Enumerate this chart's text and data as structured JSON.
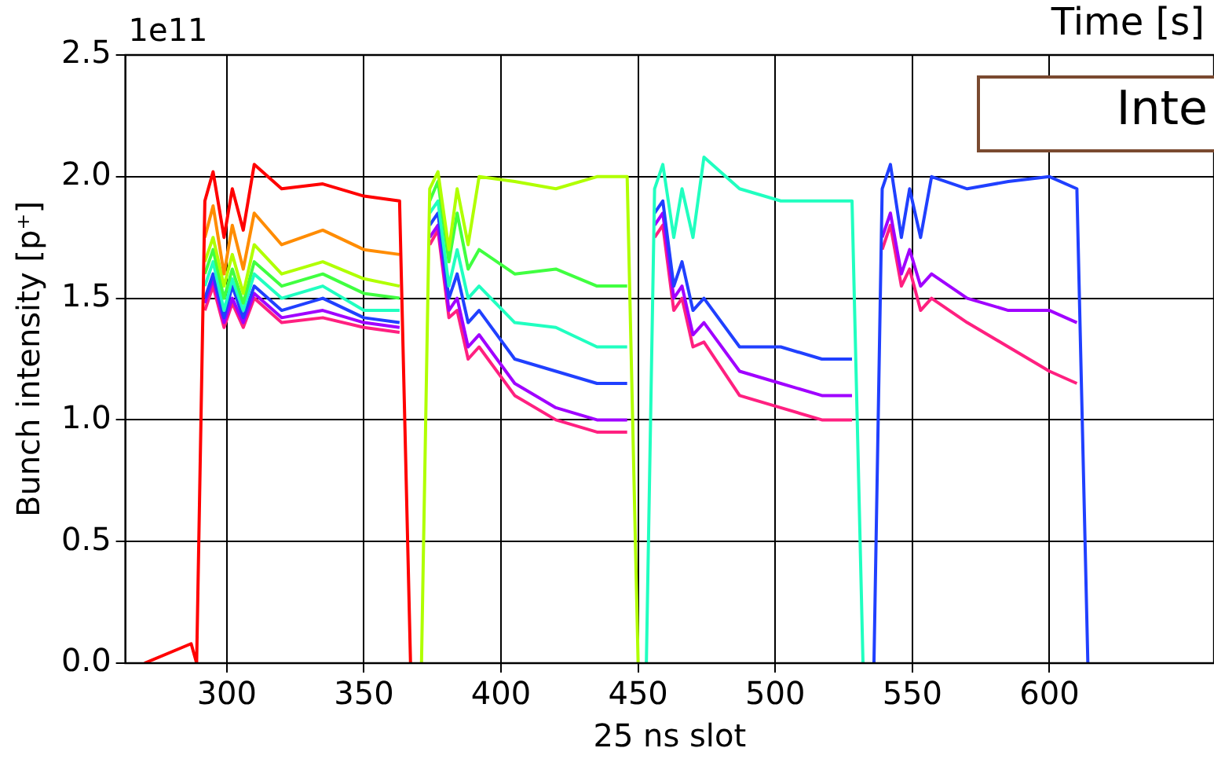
{
  "chart_data": {
    "type": "line",
    "xlabel": "25 ns slot",
    "ylabel": "Bunch intensity [p⁺]",
    "annotations": [
      "1e11",
      "Time [s]",
      "Inte"
    ],
    "x": [
      270,
      287,
      289,
      292,
      295,
      299,
      302,
      306,
      310,
      320,
      335,
      350,
      363,
      367,
      371,
      374,
      377,
      381,
      384,
      388,
      392,
      405,
      420,
      435,
      446,
      450,
      453,
      456,
      459,
      463,
      466,
      470,
      474,
      487,
      502,
      517,
      528,
      532,
      536,
      539,
      542,
      546,
      549,
      553,
      557,
      570,
      585,
      600,
      610,
      614
    ],
    "series": [
      {
        "color": "#ff0000",
        "values": [
          0,
          0.08,
          0,
          1.9,
          2.02,
          1.75,
          1.95,
          1.78,
          2.05,
          1.95,
          1.97,
          1.92,
          1.9,
          0,
          null,
          null,
          null,
          null,
          null,
          null,
          null,
          null,
          null,
          null,
          null,
          null,
          null,
          null,
          null,
          null,
          null,
          null,
          null,
          null,
          null,
          null,
          null,
          null,
          null,
          null,
          null,
          null,
          null,
          null,
          null,
          null,
          null,
          null,
          null,
          null
        ]
      },
      {
        "color": "#ff8c00",
        "values": [
          null,
          null,
          null,
          1.75,
          1.88,
          1.6,
          1.8,
          1.62,
          1.85,
          1.72,
          1.78,
          1.7,
          1.68,
          null,
          null,
          null,
          null,
          null,
          null,
          null,
          null,
          null,
          null,
          null,
          null,
          null,
          null,
          null,
          null,
          null,
          null,
          null,
          null,
          null,
          null,
          null,
          null,
          null,
          null,
          null,
          null,
          null,
          null,
          null,
          null,
          null,
          null,
          null,
          null,
          null
        ]
      },
      {
        "color": "#b0ff00",
        "values": [
          null,
          null,
          null,
          1.65,
          1.75,
          1.55,
          1.68,
          1.52,
          1.72,
          1.6,
          1.65,
          1.58,
          1.55,
          null,
          0,
          1.95,
          2.02,
          1.7,
          1.95,
          1.72,
          2.0,
          1.98,
          1.95,
          2.0,
          2.0,
          0,
          null,
          null,
          null,
          null,
          null,
          null,
          null,
          null,
          null,
          null,
          null,
          null,
          null,
          null,
          null,
          null,
          null,
          null,
          null,
          null,
          null,
          null,
          null,
          null
        ]
      },
      {
        "color": "#40ff40",
        "values": [
          null,
          null,
          null,
          1.6,
          1.7,
          1.5,
          1.62,
          1.48,
          1.65,
          1.55,
          1.6,
          1.52,
          1.5,
          null,
          null,
          1.9,
          1.98,
          1.65,
          1.85,
          1.62,
          1.7,
          1.6,
          1.62,
          1.55,
          1.55,
          null,
          null,
          null,
          null,
          null,
          null,
          null,
          null,
          null,
          null,
          null,
          null,
          null,
          null,
          null,
          null,
          null,
          null,
          null,
          null,
          null,
          null,
          null,
          null,
          null
        ]
      },
      {
        "color": "#20ffc0",
        "values": [
          null,
          null,
          null,
          1.55,
          1.65,
          1.45,
          1.58,
          1.45,
          1.6,
          1.5,
          1.55,
          1.45,
          1.45,
          null,
          null,
          1.85,
          1.9,
          1.55,
          1.7,
          1.5,
          1.55,
          1.4,
          1.38,
          1.3,
          1.3,
          null,
          0,
          1.95,
          2.05,
          1.75,
          1.95,
          1.75,
          2.08,
          1.95,
          1.9,
          1.9,
          1.9,
          0,
          null,
          null,
          null,
          null,
          null,
          null,
          null,
          null,
          null,
          null,
          null,
          null
        ]
      },
      {
        "color": "#2040ff",
        "values": [
          null,
          null,
          null,
          1.5,
          1.6,
          1.42,
          1.55,
          1.42,
          1.55,
          1.45,
          1.5,
          1.42,
          1.4,
          null,
          null,
          1.8,
          1.85,
          1.5,
          1.6,
          1.4,
          1.45,
          1.25,
          1.2,
          1.15,
          1.15,
          null,
          null,
          1.85,
          1.9,
          1.55,
          1.65,
          1.45,
          1.5,
          1.3,
          1.3,
          1.25,
          1.25,
          null,
          0,
          1.95,
          2.05,
          1.75,
          1.95,
          1.75,
          2.0,
          1.95,
          1.98,
          2.0,
          1.95,
          0
        ]
      },
      {
        "color": "#a000ff",
        "values": [
          null,
          null,
          null,
          1.48,
          1.58,
          1.4,
          1.5,
          1.4,
          1.52,
          1.42,
          1.45,
          1.4,
          1.38,
          null,
          null,
          1.75,
          1.8,
          1.45,
          1.5,
          1.3,
          1.35,
          1.15,
          1.05,
          1.0,
          1.0,
          null,
          null,
          1.8,
          1.85,
          1.5,
          1.55,
          1.35,
          1.4,
          1.2,
          1.15,
          1.1,
          1.1,
          null,
          null,
          1.75,
          1.85,
          1.6,
          1.7,
          1.55,
          1.6,
          1.5,
          1.45,
          1.45,
          1.4,
          null
        ]
      },
      {
        "color": "#ff2080",
        "values": [
          null,
          null,
          null,
          1.45,
          1.55,
          1.38,
          1.48,
          1.38,
          1.5,
          1.4,
          1.42,
          1.38,
          1.36,
          null,
          null,
          1.72,
          1.78,
          1.42,
          1.45,
          1.25,
          1.3,
          1.1,
          1.0,
          0.95,
          0.95,
          null,
          null,
          1.75,
          1.8,
          1.45,
          1.5,
          1.3,
          1.32,
          1.1,
          1.05,
          1.0,
          1.0,
          null,
          null,
          1.7,
          1.8,
          1.55,
          1.62,
          1.45,
          1.5,
          1.4,
          1.3,
          1.2,
          1.15,
          null
        ]
      }
    ],
    "xlim": [
      263,
      660
    ],
    "xticks": [
      300,
      350,
      400,
      450,
      500,
      550,
      600
    ],
    "ylim": [
      0,
      2.5
    ],
    "yticks": [
      {
        "value": 0,
        "label": "0.0"
      },
      {
        "value": 0.5,
        "label": "0.5"
      },
      {
        "value": 1,
        "label": "1.0"
      },
      {
        "value": 1.5,
        "label": "1.5"
      },
      {
        "value": 2,
        "label": "2.0"
      },
      {
        "value": 2.5,
        "label": "2.5"
      }
    ],
    "grid": true,
    "legend": false
  }
}
